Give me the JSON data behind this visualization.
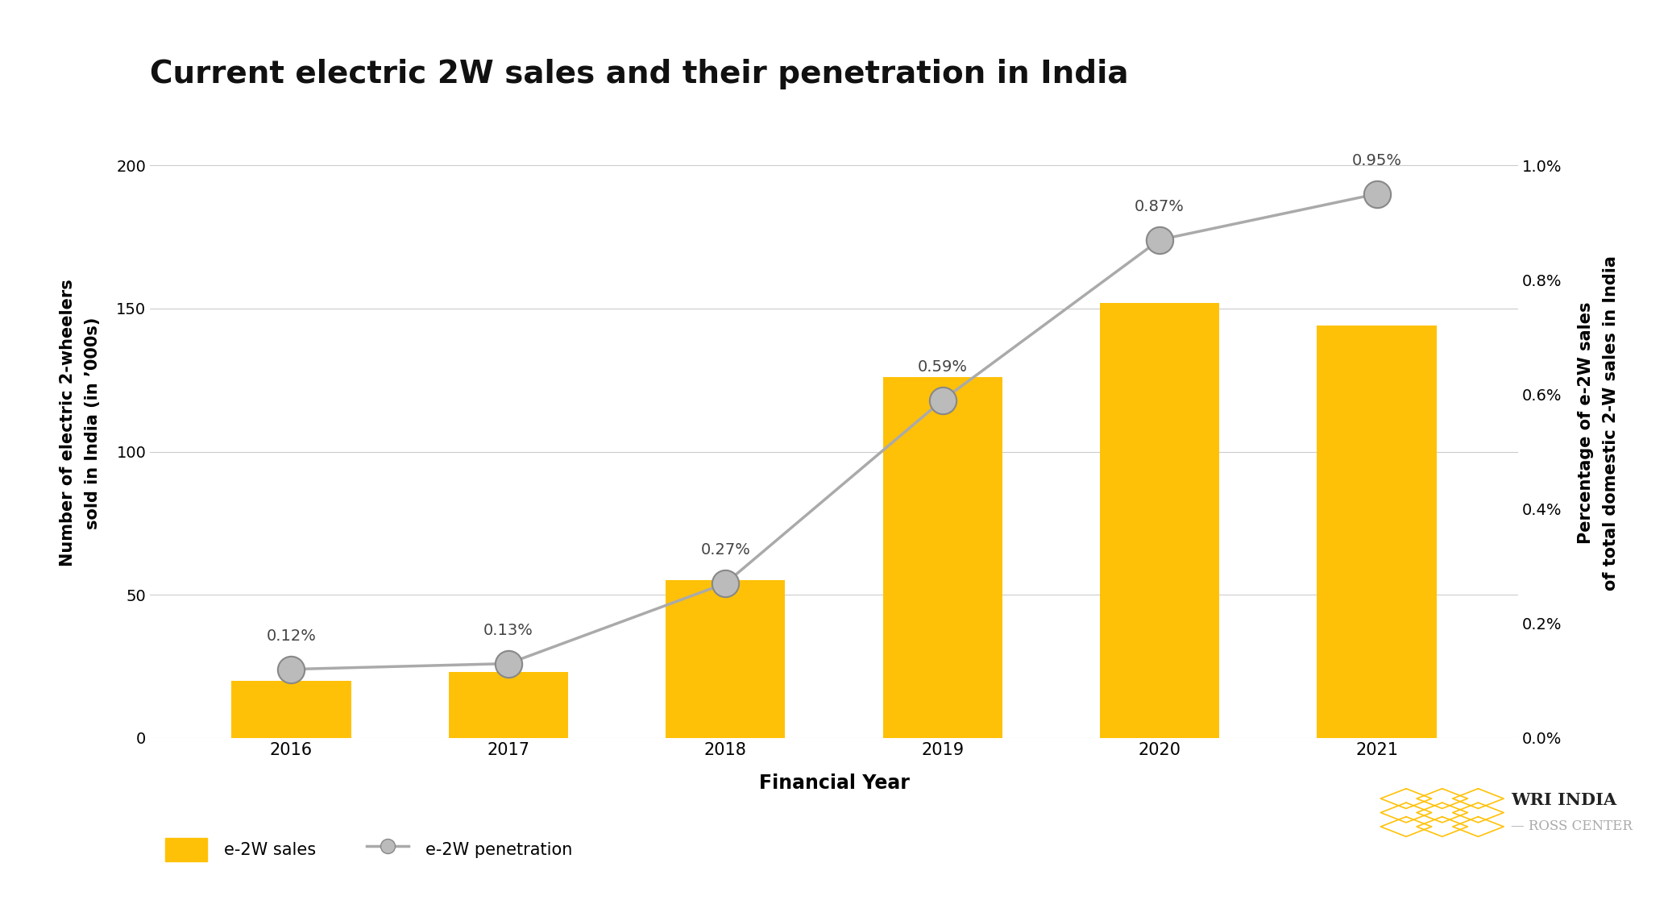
{
  "title": "Current electric 2W sales and their penetration in India",
  "years": [
    "2016",
    "2017",
    "2018",
    "2019",
    "2020",
    "2021"
  ],
  "sales": [
    20,
    23,
    55,
    126,
    152,
    144
  ],
  "penetration": [
    0.12,
    0.13,
    0.27,
    0.59,
    0.87,
    0.95
  ],
  "bar_color": "#FFC107",
  "line_color": "#AAAAAA",
  "marker_facecolor": "#BBBBBB",
  "marker_edgecolor": "#888888",
  "ylabel_left": "Number of electric 2-wheelers\nsold in India (in ’000s)",
  "ylabel_right": "Percentage of e-2W sales\nof total domestic 2-W sales in India",
  "xlabel": "Financial Year",
  "ylim_left": [
    0,
    220
  ],
  "ylim_right": [
    0.0,
    1.1
  ],
  "yticks_left": [
    0,
    50,
    100,
    150,
    200
  ],
  "yticks_right": [
    0.0,
    0.2,
    0.4,
    0.6,
    0.8,
    1.0
  ],
  "bar_label_color": "#FFC107",
  "penetration_label_color": "#444444",
  "background_color": "#FFFFFF",
  "legend_bar_label": "e-2W sales",
  "legend_line_label": "e-2W penetration",
  "title_fontsize": 28,
  "axis_label_fontsize": 15,
  "tick_fontsize": 14,
  "bar_label_fontsize": 14,
  "penetration_label_fontsize": 14,
  "legend_fontsize": 15,
  "bar_width": 0.55
}
